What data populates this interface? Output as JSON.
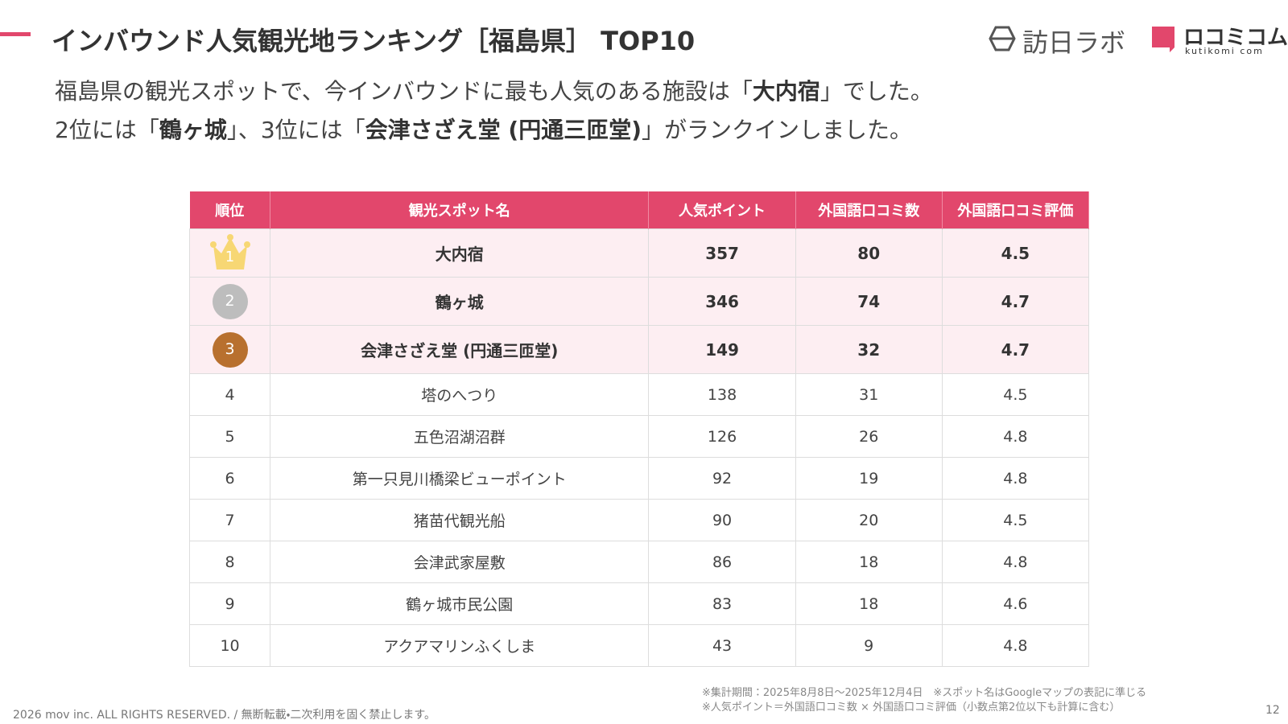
{
  "header": {
    "title": "インバウンド人気観光地ランキング［福島県］ TOP10",
    "logo_houjin": "訪日ラボ",
    "logo_kuchikomi": "ロコミコム",
    "logo_kuchikomi_sub": "kutikomi com"
  },
  "intro": {
    "line1": [
      "福島県の観光スポットで、今インバウンドに最も人気のある施設は「",
      "大内宿",
      "」でした。"
    ],
    "line2": [
      "2位には「",
      "鶴ヶ城",
      "」、3位には「",
      "会津さざえ堂 (円通三匝堂)",
      "」がランクインしました。"
    ]
  },
  "table": {
    "headers": [
      "順位",
      "観光スポット名",
      "人気ポイント",
      "外国語口コミ数",
      "外国語口コミ評価"
    ],
    "rows": [
      [
        1,
        "大内宿",
        357,
        80,
        4.5
      ],
      [
        2,
        "鶴ヶ城",
        346,
        74,
        4.7
      ],
      [
        3,
        "会津さざえ堂 (円通三匝堂)",
        149,
        32,
        4.7
      ],
      [
        4,
        "塔のへつり",
        138,
        31,
        4.5
      ],
      [
        5,
        "五色沼湖沼群",
        126,
        26,
        4.8
      ],
      [
        6,
        "第一只見川橋梁ビューポイント",
        92,
        19,
        4.8
      ],
      [
        7,
        "猪苗代観光船",
        90,
        20,
        4.5
      ],
      [
        8,
        "会津武家屋敷",
        86,
        18,
        4.8
      ],
      [
        9,
        "鶴ヶ城市民公園",
        83,
        18,
        4.6
      ],
      [
        10,
        "アクアマリンふくしま",
        43,
        9,
        4.8
      ]
    ]
  },
  "footer": {
    "notes": [
      "※集計期間：2025年8月8日〜2025年12月4日　※スポット名はGoogleマップの表記に準じる",
      "※人気ポイント＝外国語口コミ数 × 外国語口コミ評価（小数点第2位以下も計算に含む）"
    ],
    "copyright": "2026 mov inc. ALL RIGHTS RESERVED. / 無断転載・二次利用を固く禁止します。",
    "page": "12"
  }
}
